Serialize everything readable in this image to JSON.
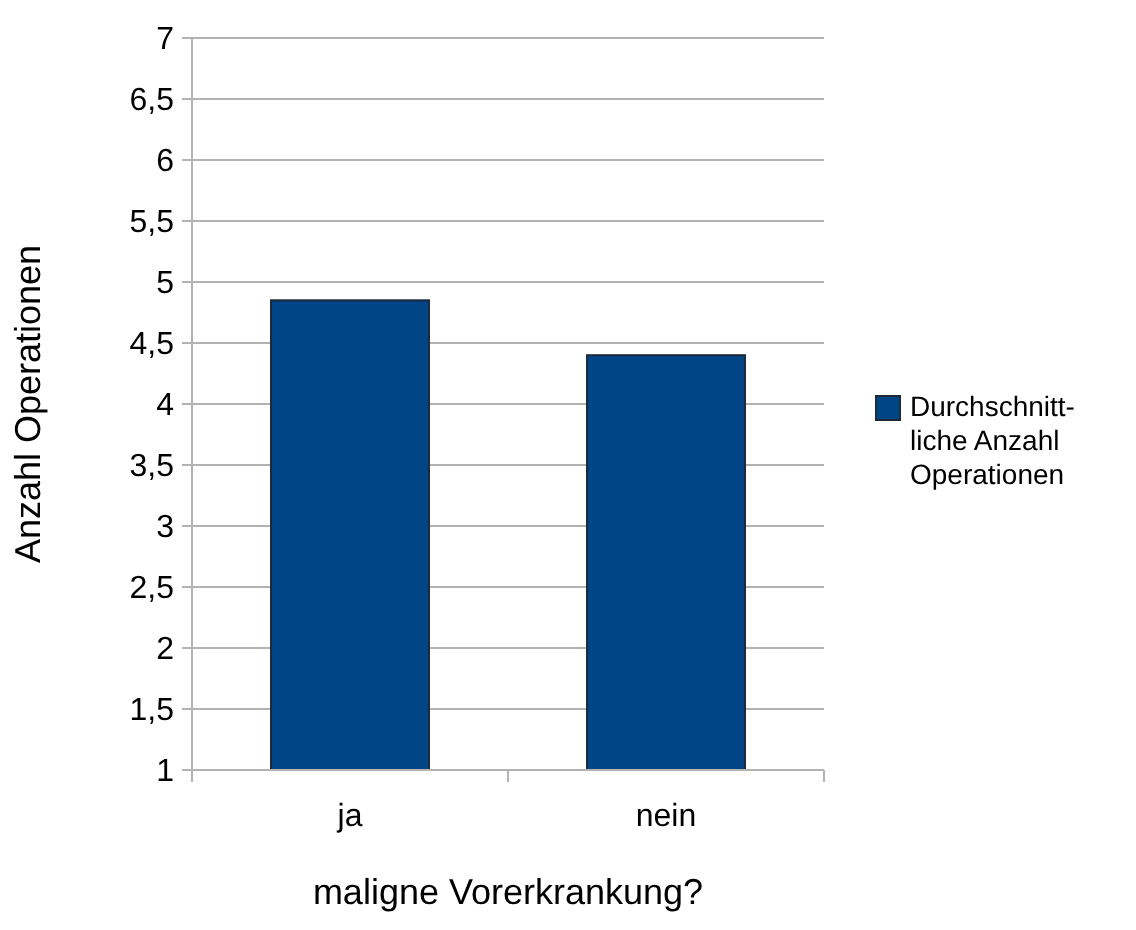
{
  "chart_data": {
    "type": "bar",
    "xlabel": "maligne Vorerkrankung?",
    "ylabel": "Anzahl Operationen",
    "categories": [
      "ja",
      "nein"
    ],
    "series": [
      {
        "name": "Durchschnitt- liche Anzahl Operationen",
        "color": "#004586",
        "values": [
          4.85,
          4.4
        ]
      }
    ],
    "ylim": [
      1,
      7
    ],
    "yticks": [
      1,
      {
        "value": 1.5,
        "label": "1,5"
      },
      2,
      {
        "value": 2.5,
        "label": "2,5"
      },
      3,
      {
        "value": 3.5,
        "label": "3,5"
      },
      4,
      {
        "value": 4.5,
        "label": "4,5"
      },
      5,
      {
        "value": 5.5,
        "label": "5,5"
      },
      6,
      {
        "value": 6.5,
        "label": "6,5"
      },
      7
    ],
    "grid": "y",
    "legend": "right"
  }
}
